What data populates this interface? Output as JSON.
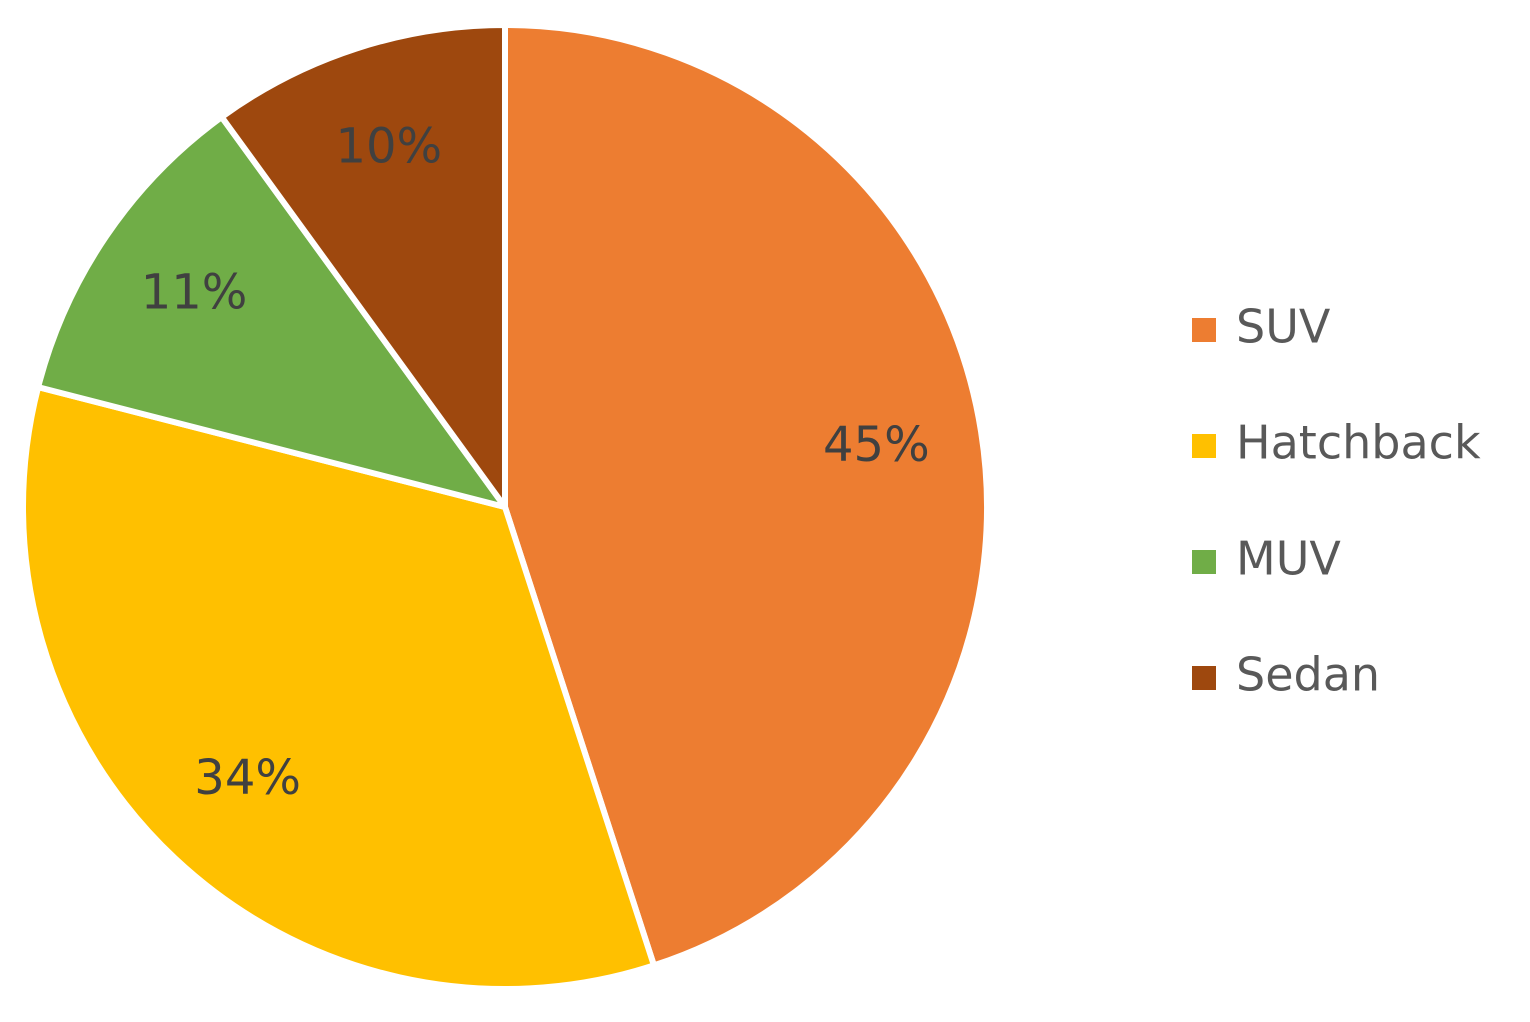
{
  "chart_data": {
    "type": "pie",
    "title": "",
    "legend_position": "right",
    "slices": [
      {
        "name": "SUV",
        "value": 45,
        "label": "45%",
        "color": "#ED7D31"
      },
      {
        "name": "Hatchback",
        "value": 34,
        "label": "34%",
        "color": "#FFC000"
      },
      {
        "name": "MUV",
        "value": 11,
        "label": "11%",
        "color": "#70AD47"
      },
      {
        "name": "Sedan",
        "value": 10,
        "label": "10%",
        "color": "#9E480E"
      }
    ]
  }
}
